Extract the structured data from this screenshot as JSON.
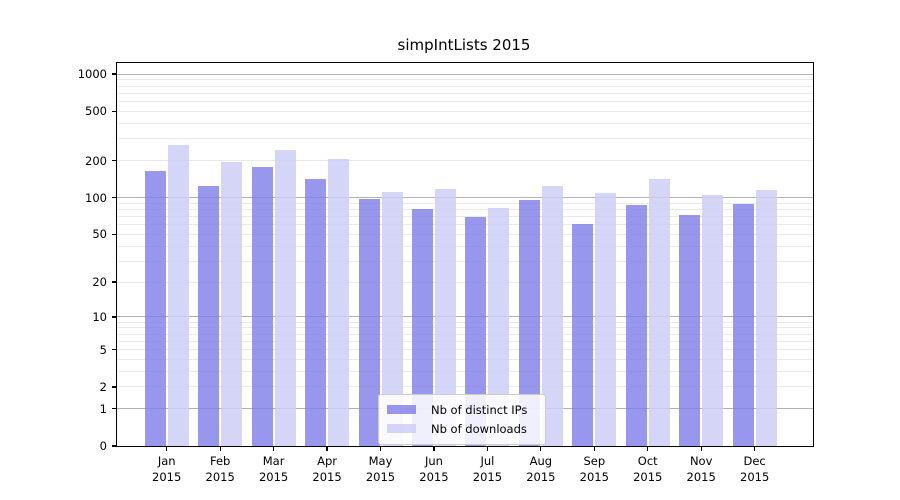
{
  "chart_data": {
    "type": "bar",
    "title": "simpIntLists 2015",
    "categories": [
      "Jan",
      "Feb",
      "Mar",
      "Apr",
      "May",
      "Jun",
      "Jul",
      "Aug",
      "Sep",
      "Oct",
      "Nov",
      "Dec"
    ],
    "year_label": "2015",
    "series": [
      {
        "name": "Nb of distinct IPs",
        "color": "#9b9bee",
        "values": [
          165,
          124,
          178,
          142,
          98,
          80,
          70,
          96,
          61,
          87,
          72,
          88
        ]
      },
      {
        "name": "Nb of downloads",
        "color": "#d8d8f8",
        "values": [
          268,
          195,
          243,
          205,
          112,
          118,
          82,
          125,
          108,
          142,
          105,
          115
        ]
      }
    ],
    "yscale": "log1p",
    "ylim": [
      0,
      1230
    ],
    "yticks": [
      0,
      1,
      2,
      5,
      10,
      20,
      50,
      100,
      200,
      500,
      1000
    ],
    "major_gridlines": [
      1,
      10,
      100,
      1000
    ],
    "minor_gridline_decades": [
      1,
      10,
      100
    ],
    "grid": "on",
    "xlabel": "",
    "ylabel": "",
    "legend_position": "lower center",
    "axis_color": "#000000",
    "major_grid_color": "#b2b2b2",
    "minor_grid_color": "#eaeaea"
  }
}
